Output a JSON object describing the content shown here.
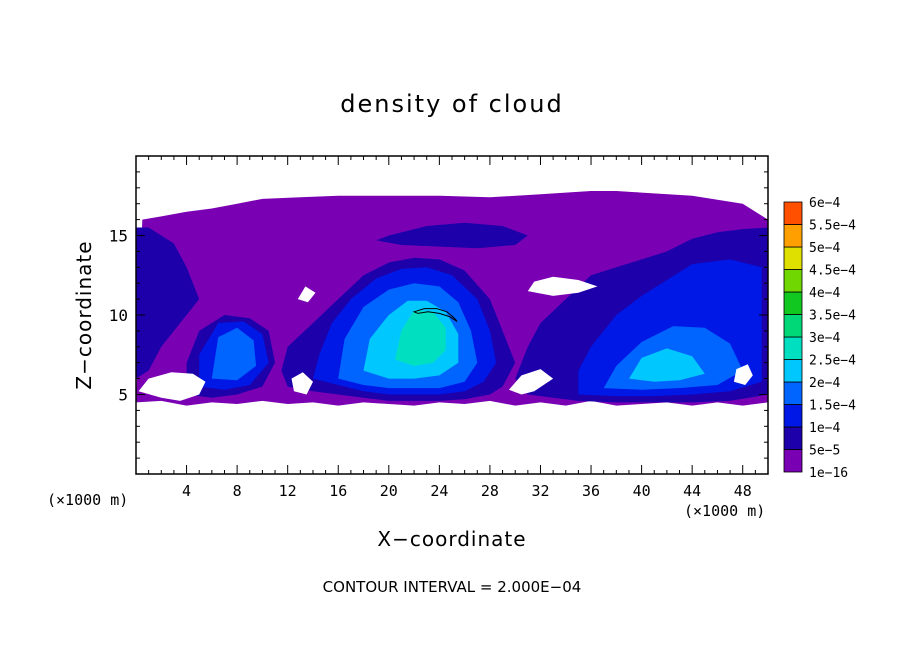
{
  "chart_data": {
    "type": "heatmap",
    "title": "density of cloud",
    "xlabel": "X−coordinate",
    "ylabel": "Z−coordinate",
    "x_unit": "(×1000 m)",
    "y_unit": "(×1000 m)",
    "footer": "CONTOUR INTERVAL = 2.000E−04",
    "xlim": [
      0,
      50
    ],
    "ylim": [
      0,
      20
    ],
    "x_ticks": [
      4,
      8,
      12,
      16,
      20,
      24,
      28,
      32,
      36,
      40,
      44,
      48
    ],
    "x_tick_labels": [
      "4",
      "8",
      "12",
      "16",
      "20",
      "24",
      "28",
      "32",
      "36",
      "40",
      "44",
      "48"
    ],
    "y_ticks": [
      5,
      10,
      15
    ],
    "y_tick_labels": [
      "5",
      "10",
      "15"
    ],
    "colorbar": {
      "levels": [
        "1e−16",
        "5e−5",
        "1e−4",
        "1.5e−4",
        "2e−4",
        "2.5e−4",
        "3e−4",
        "3.5e−4",
        "4e−4",
        "4.5e−4",
        "5e−4",
        "5.5e−4",
        "6e−4"
      ],
      "colors": [
        "#7a00b4",
        "#1e00aa",
        "#0018e6",
        "#0064ff",
        "#00c8ff",
        "#00e0c0",
        "#00d878",
        "#10c820",
        "#70d800",
        "#e0e000",
        "#ffa000",
        "#ff5000",
        "#ff2020",
        "#ff7878"
      ]
    },
    "grid": false,
    "regions": [
      {
        "level": 0,
        "x": [
          0,
          0.5,
          2,
          4,
          6,
          8,
          10,
          13,
          16,
          20,
          24,
          28,
          32,
          36,
          38,
          40,
          44,
          48,
          50,
          50,
          48,
          46,
          44,
          42,
          40,
          38,
          36,
          34,
          32,
          30,
          28,
          26,
          24,
          22,
          20,
          18,
          16,
          14,
          12,
          10,
          8,
          6,
          4,
          2,
          0
        ],
        "y": [
          4.5,
          16,
          16.2,
          16.5,
          16.7,
          17,
          17.3,
          17.4,
          17.5,
          17.5,
          17.5,
          17.4,
          17.6,
          17.8,
          17.8,
          17.7,
          17.5,
          17,
          16,
          4.5,
          4.3,
          4.5,
          4.3,
          4.5,
          4.4,
          4.3,
          4.6,
          4.3,
          4.5,
          4.3,
          4.6,
          4.4,
          4.5,
          4.3,
          4.4,
          4.5,
          4.3,
          4.5,
          4.4,
          4.6,
          4.4,
          4.5,
          4.3,
          4.6,
          4.5
        ]
      },
      {
        "level": 1,
        "x": [
          0,
          1,
          2,
          3,
          4,
          5,
          4,
          3,
          2,
          1,
          0
        ],
        "y": [
          6,
          6.5,
          8,
          9,
          10,
          11,
          13,
          14.5,
          15,
          15.5,
          15.5
        ]
      },
      {
        "level": 1,
        "x": [
          4,
          6,
          8,
          10,
          11,
          10.5,
          9,
          7,
          5,
          4
        ],
        "y": [
          5,
          4.8,
          5,
          5.5,
          7,
          9,
          9.8,
          10,
          9,
          7
        ]
      },
      {
        "level": 1,
        "x": [
          12,
          14,
          16,
          18,
          20,
          22,
          24,
          26,
          28,
          29,
          30,
          29,
          28,
          26,
          24,
          22,
          20,
          18,
          16,
          14,
          12,
          11.5
        ],
        "y": [
          5.5,
          5.2,
          5,
          4.8,
          4.6,
          4.6,
          4.6,
          4.7,
          5,
          5.5,
          7,
          9,
          11,
          12.8,
          13.5,
          13.6,
          13.3,
          12.5,
          11,
          9.5,
          8,
          6.5
        ]
      },
      {
        "level": 1,
        "x": [
          30,
          31,
          33,
          35,
          38,
          41,
          44,
          47,
          50,
          50,
          48,
          46,
          44,
          42,
          40,
          38,
          36,
          34,
          32,
          31
        ],
        "y": [
          6,
          5,
          4.8,
          4.6,
          4.5,
          4.5,
          4.5,
          4.6,
          5,
          15.5,
          15.4,
          15.2,
          14.8,
          14,
          13.5,
          13,
          12.5,
          11,
          9.5,
          8
        ]
      },
      {
        "level": 1,
        "x": [
          20,
          23,
          26,
          29,
          31,
          30,
          27,
          24,
          21,
          19
        ],
        "y": [
          15,
          15.6,
          15.8,
          15.6,
          15,
          14.4,
          14.2,
          14.3,
          14.4,
          14.7
        ]
      },
      {
        "level": 2,
        "x": [
          14,
          16,
          18,
          20,
          22,
          24,
          26,
          27.5,
          28.5,
          28,
          27,
          25,
          23,
          21,
          19,
          17,
          15.5,
          14.5
        ],
        "y": [
          6,
          5.6,
          5.2,
          5,
          5,
          5,
          5.2,
          5.8,
          7,
          9,
          11,
          12.5,
          13,
          12.9,
          12.3,
          11,
          9.5,
          7.5
        ]
      },
      {
        "level": 2,
        "x": [
          5,
          7,
          9,
          10.5,
          10,
          8.5,
          6.5,
          5
        ],
        "y": [
          5.5,
          5.3,
          5.6,
          7,
          8.8,
          9.6,
          9.5,
          7.5
        ]
      },
      {
        "level": 2,
        "x": [
          35,
          38,
          41,
          44,
          47,
          49.5,
          49.5,
          47,
          44,
          42,
          40,
          38,
          36,
          35
        ],
        "y": [
          5,
          4.9,
          4.9,
          5,
          5.2,
          5.8,
          13,
          13.5,
          13.2,
          12.2,
          11.2,
          10,
          8,
          6.5
        ]
      },
      {
        "level": 3,
        "x": [
          16,
          18,
          20,
          22,
          24,
          26,
          27,
          26.5,
          25.5,
          24,
          22,
          20,
          18,
          16.5
        ],
        "y": [
          6,
          5.6,
          5.4,
          5.4,
          5.4,
          5.8,
          7,
          9,
          10.8,
          11.8,
          12,
          11.6,
          10.5,
          8.5
        ]
      },
      {
        "level": 3,
        "x": [
          6,
          8,
          9.5,
          9.3,
          8,
          6.5
        ],
        "y": [
          6,
          5.9,
          6.8,
          8.4,
          9.2,
          8.6
        ]
      },
      {
        "level": 3,
        "x": [
          37,
          40,
          43,
          46,
          48,
          47,
          45,
          42.5,
          40,
          38
        ],
        "y": [
          5.4,
          5.3,
          5.4,
          5.6,
          6.5,
          8.2,
          9.2,
          9.3,
          8.3,
          6.8
        ]
      },
      {
        "level": 4,
        "x": [
          18,
          20,
          22,
          24,
          25.5,
          25.5,
          24.5,
          23,
          21.5,
          20,
          18.5
        ],
        "y": [
          6.5,
          6,
          6,
          6.2,
          7,
          8.8,
          10.2,
          10.9,
          10.9,
          10,
          8.5
        ]
      },
      {
        "level": 4,
        "x": [
          39,
          41,
          43,
          45,
          44,
          42,
          40
        ],
        "y": [
          6,
          5.8,
          5.9,
          6.3,
          7.4,
          7.9,
          7.3
        ]
      },
      {
        "level": 5,
        "x": [
          20.5,
          22,
          23.5,
          24.5,
          24.5,
          23.5,
          22,
          21
        ],
        "y": [
          7.2,
          6.8,
          7,
          7.8,
          9.2,
          10.2,
          10.3,
          9
        ]
      }
    ],
    "holes": [
      {
        "x": [
          0.2,
          2,
          3.5,
          5,
          5.5,
          4.5,
          2.8,
          1
        ],
        "y": [
          5.2,
          4.8,
          4.6,
          5,
          5.8,
          6.3,
          6.4,
          6
        ]
      },
      {
        "x": [
          12.5,
          13.5,
          14,
          13.2,
          12.3
        ],
        "y": [
          5.2,
          5,
          5.8,
          6.4,
          6
        ]
      },
      {
        "x": [
          29.5,
          30.5,
          31.5,
          33,
          32,
          30.5
        ],
        "y": [
          5.3,
          5,
          5.2,
          6,
          6.6,
          6.2
        ]
      },
      {
        "x": [
          47.3,
          48.2,
          48.8,
          48.4,
          47.5
        ],
        "y": [
          5.8,
          5.6,
          6.2,
          6.9,
          6.6
        ]
      },
      {
        "x": [
          31,
          33,
          35,
          36.5,
          35,
          33,
          31.5
        ],
        "y": [
          11.5,
          11.2,
          11.4,
          11.8,
          12.2,
          12.4,
          12.1
        ]
      },
      {
        "x": [
          12.8,
          13.6,
          14.2,
          13.4
        ],
        "y": [
          11,
          10.8,
          11.4,
          11.8
        ]
      }
    ],
    "contour_line": {
      "level": "6e−4",
      "x": [
        22,
        22.8,
        23.8,
        24.6,
        25.2,
        25.4,
        24.8,
        24,
        23.1,
        22.3
      ],
      "y": [
        10.2,
        10.4,
        10.4,
        10.2,
        9.8,
        9.6,
        9.9,
        10.1,
        10.2,
        10.1
      ]
    }
  }
}
